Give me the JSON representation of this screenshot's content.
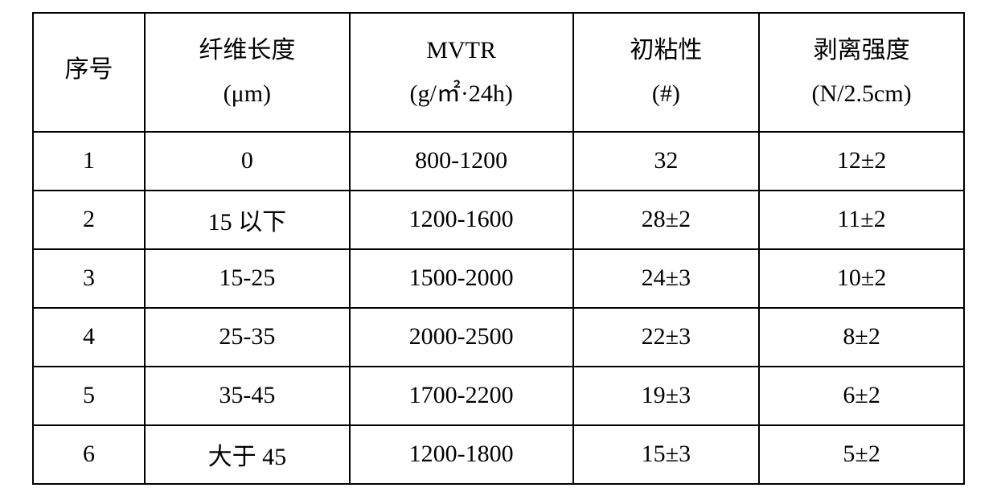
{
  "table": {
    "type": "table",
    "border_color": "#000000",
    "border_width": 2,
    "background_color": "#ffffff",
    "text_color": "#000000",
    "font_family": "SimSun",
    "font_size": 30,
    "header_row_height": 148,
    "body_row_height": 73,
    "column_widths": [
      "12%",
      "22%",
      "24%",
      "20%",
      "22%"
    ],
    "text_align": "center",
    "columns": [
      {
        "header_main": "序号",
        "header_sub": ""
      },
      {
        "header_main": "纤维长度",
        "header_sub": "(μm)"
      },
      {
        "header_main": "MVTR",
        "header_sub": "(g/㎡·24h)"
      },
      {
        "header_main": "初粘性",
        "header_sub": "(#)"
      },
      {
        "header_main": "剥离强度",
        "header_sub": "(N/2.5cm)"
      }
    ],
    "rows": [
      {
        "c0": "1",
        "c1": "0",
        "c2": "800-1200",
        "c3": "32",
        "c4": "12±2"
      },
      {
        "c0": "2",
        "c1": "15 以下",
        "c2": "1200-1600",
        "c3": "28±2",
        "c4": "11±2"
      },
      {
        "c0": "3",
        "c1": "15-25",
        "c2": "1500-2000",
        "c3": "24±3",
        "c4": "10±2"
      },
      {
        "c0": "4",
        "c1": "25-35",
        "c2": "2000-2500",
        "c3": "22±3",
        "c4": "8±2"
      },
      {
        "c0": "5",
        "c1": "35-45",
        "c2": "1700-2200",
        "c3": "19±3",
        "c4": "6±2"
      },
      {
        "c0": "6",
        "c1": "大于 45",
        "c2": "1200-1800",
        "c3": "15±3",
        "c4": "5±2"
      }
    ]
  }
}
